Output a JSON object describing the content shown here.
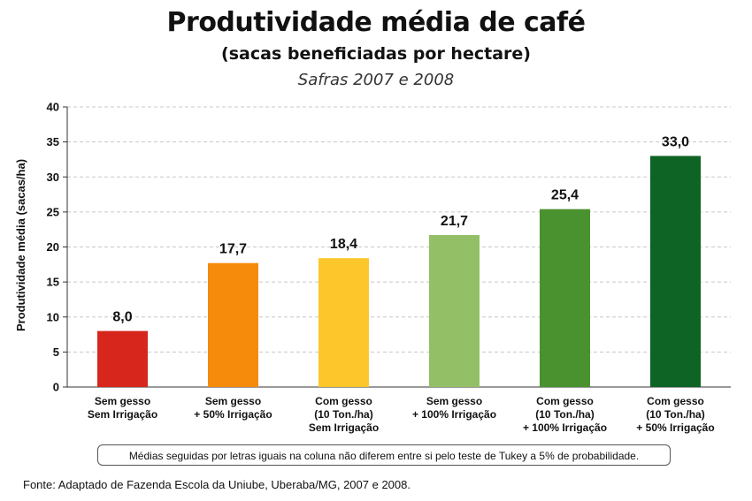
{
  "chart_data": {
    "type": "bar",
    "title": "Produtividade média de café",
    "subtitle": "(sacas beneficiadas por hectare)",
    "subsubtitle": "Safras 2007 e 2008",
    "ylabel": "Produtividade média (sacas/ha)",
    "xlabel": "",
    "ylim": [
      0,
      40
    ],
    "yticks": [
      0,
      5,
      10,
      15,
      20,
      25,
      30,
      35,
      40
    ],
    "grid": true,
    "categories": [
      [
        "Sem gesso",
        "Sem Irrigação"
      ],
      [
        "Sem gesso",
        "+ 50% Irrigação"
      ],
      [
        "Com gesso",
        "(10 Ton./ha)",
        "Sem Irrigação"
      ],
      [
        "Sem gesso",
        "+ 100% Irrigação"
      ],
      [
        "Com gesso",
        "(10 Ton./ha)",
        "+ 100% Irrigação"
      ],
      [
        "Com gesso",
        "(10 Ton./ha)",
        "+ 50% Irrigação"
      ]
    ],
    "values": [
      8.0,
      17.7,
      18.4,
      21.7,
      25.4,
      33.0
    ],
    "value_labels": [
      "8,0",
      "17,7",
      "18,4",
      "21,7",
      "25,4",
      "33,0"
    ],
    "colors": [
      "#d7261b",
      "#f58a0b",
      "#fdc62a",
      "#93c066",
      "#4a9230",
      "#0e6425"
    ]
  },
  "note": "Médias seguidas por letras iguais na coluna não diferem entre si pelo teste de Tukey a 5% de probabilidade.",
  "source": "Fonte: Adaptado de Fazenda Escola da Uniube, Uberaba/MG, 2007 e 2008."
}
